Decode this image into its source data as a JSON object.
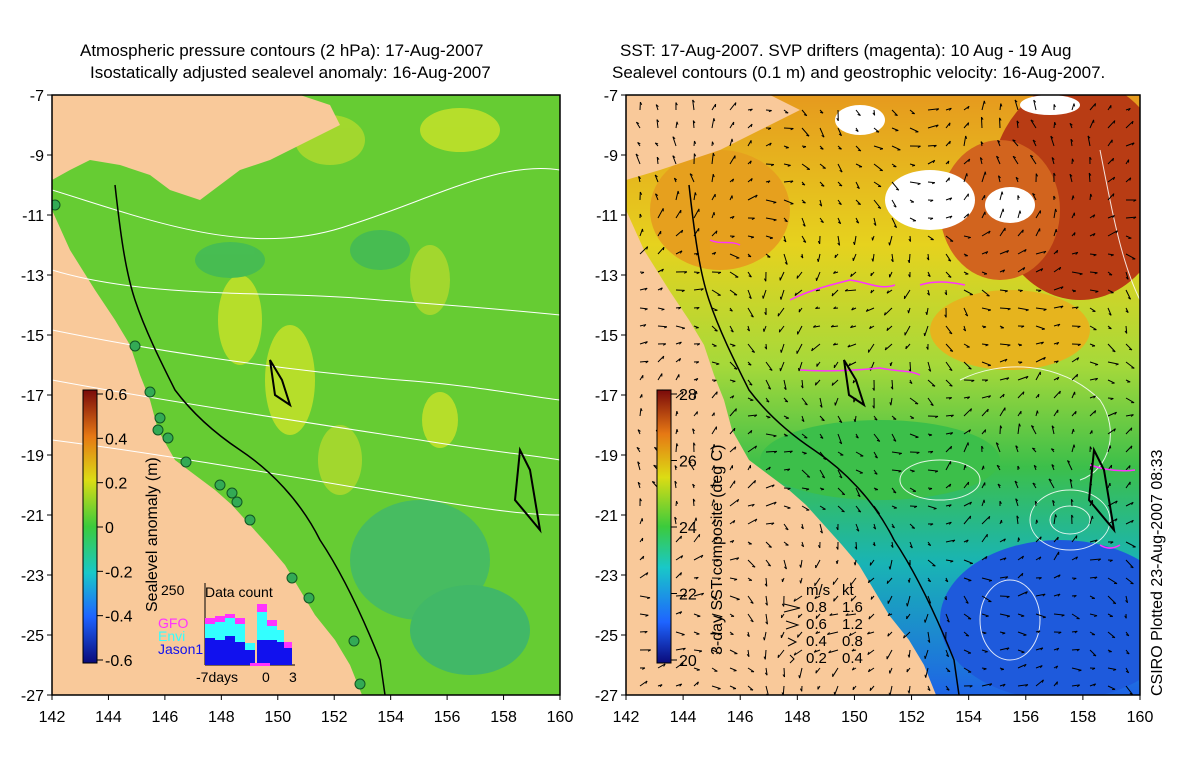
{
  "left_panel": {
    "title_line1": "Atmospheric pressure contours (2 hPa): 17-Aug-2007",
    "title_line2": "Isostatically adjusted sealevel anomaly: 16-Aug-2007",
    "colorbar_label": "Sealevel anomaly (m)",
    "colorbar_ticks": [
      "0.6",
      "0.4",
      "0.2",
      "0",
      "-0.2",
      "-0.4",
      "-0.6"
    ],
    "inset": {
      "title": "Data count",
      "ymax_label": "250",
      "series": [
        "GFO",
        "Envi",
        "Jason1"
      ],
      "series_colors": [
        "#ff33ff",
        "#33ffff",
        "#1111ee"
      ],
      "xticks": [
        "-7days",
        "0",
        "3"
      ]
    }
  },
  "right_panel": {
    "title_line1": "SST: 17-Aug-2007. SVP drifters (magenta): 10 Aug - 19 Aug",
    "title_line2": "Sealevel contours (0.1 m) and geostrophic velocity: 16-Aug-2007.",
    "colorbar_label": "3-day SST composite (deg C)",
    "colorbar_ticks": [
      "28",
      "26",
      "24",
      "22",
      "20"
    ],
    "velocity_legend": {
      "header_ms": "m/s",
      "header_kt": "kt",
      "rows": [
        {
          "ms": "0.8",
          "kt": "1.6"
        },
        {
          "ms": "0.6",
          "kt": "1.2"
        },
        {
          "ms": "0.4",
          "kt": "0.8"
        },
        {
          "ms": "0.2",
          "kt": "0.4"
        }
      ]
    }
  },
  "axes": {
    "y_ticks": [
      "-7",
      "-9",
      "-11",
      "-13",
      "-15",
      "-17",
      "-19",
      "-21",
      "-23",
      "-25",
      "-27"
    ],
    "x_ticks": [
      "142",
      "144",
      "146",
      "148",
      "150",
      "152",
      "154",
      "156",
      "158",
      "160"
    ]
  },
  "footer_stamp": "CSIRO Plotted 23-Aug-2007 08:33",
  "colors": {
    "land": "#f9c99a",
    "ocean_green": "#66cc33",
    "drifters": "#ff33ff",
    "contours": "#ffffff"
  }
}
